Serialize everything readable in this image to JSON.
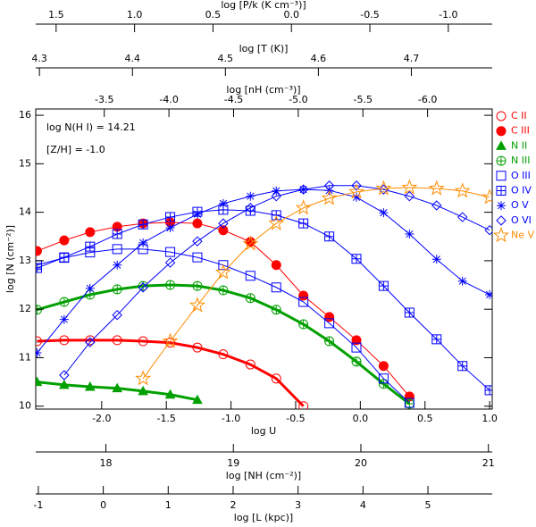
{
  "chart_data": {
    "type": "line",
    "xlabel": "log U",
    "ylabel": "log [N (cm⁻²)]",
    "xlim": [
      -2.51,
      1.02
    ],
    "ylim": [
      9.94,
      16.13
    ],
    "xticks": [
      {
        "value": -2.0,
        "label": "-2.0"
      },
      {
        "value": -1.5,
        "label": "-1.5"
      },
      {
        "value": -1.0,
        "label": "-1.0"
      },
      {
        "value": -0.5,
        "label": "-0.5"
      },
      {
        "value": 0.0,
        "label": "0.0"
      },
      {
        "value": 0.5,
        "label": "0.5"
      },
      {
        "value": 1.0,
        "label": "1.0"
      }
    ],
    "yticks": [
      10,
      11,
      12,
      13,
      14,
      15,
      16
    ],
    "annotations": [
      "log N(H I) = 14.21",
      "[Z/H] = -1.0"
    ],
    "x": [
      -2.5,
      -2.29,
      -2.09,
      -1.88,
      -1.68,
      -1.47,
      -1.26,
      -1.06,
      -0.85,
      -0.65,
      -0.44,
      -0.24,
      -0.03,
      0.18,
      0.38,
      0.59,
      0.79,
      1.0
    ],
    "series": [
      {
        "name": "C II",
        "color": "#ff0000",
        "marker": "circle-open",
        "linewidth": 3,
        "values": [
          11.34,
          11.36,
          11.36,
          11.36,
          11.34,
          11.31,
          11.21,
          11.07,
          10.86,
          10.57,
          10.0,
          null,
          null,
          null,
          null,
          null,
          null,
          null
        ]
      },
      {
        "name": "C III",
        "color": "#ff0000",
        "marker": "circle-filled",
        "linewidth": 1,
        "values": [
          13.2,
          13.42,
          13.59,
          13.7,
          13.77,
          13.79,
          13.77,
          13.63,
          13.39,
          12.91,
          12.28,
          11.84,
          11.36,
          10.83,
          10.2,
          null,
          null,
          null
        ]
      },
      {
        "name": "N II",
        "color": "#00a000",
        "marker": "triangle-filled",
        "linewidth": 3,
        "values": [
          10.5,
          10.44,
          10.4,
          10.37,
          10.31,
          10.24,
          10.13,
          null,
          null,
          null,
          null,
          null,
          null,
          null,
          null,
          null,
          null,
          null
        ]
      },
      {
        "name": "N III",
        "color": "#00a000",
        "marker": "circle-plus",
        "linewidth": 3,
        "values": [
          11.99,
          12.15,
          12.3,
          12.41,
          12.48,
          12.5,
          12.48,
          12.39,
          12.23,
          11.99,
          11.69,
          11.34,
          10.92,
          10.46,
          10.05,
          null,
          null,
          null
        ]
      },
      {
        "name": "O III",
        "color": "#0000ff",
        "marker": "square-open",
        "linewidth": 1,
        "values": [
          12.91,
          13.06,
          13.17,
          13.24,
          13.24,
          13.18,
          13.07,
          12.91,
          12.69,
          12.45,
          12.15,
          11.71,
          11.21,
          10.57,
          10.07,
          null,
          null,
          null
        ]
      },
      {
        "name": "O IV",
        "color": "#0000ff",
        "marker": "square-plus",
        "linewidth": 1,
        "values": [
          12.85,
          13.07,
          13.29,
          13.55,
          13.75,
          13.9,
          14.01,
          14.05,
          14.03,
          13.94,
          13.77,
          13.5,
          13.04,
          12.48,
          11.93,
          11.38,
          10.83,
          10.33
        ]
      },
      {
        "name": "O V",
        "color": "#0000ff",
        "marker": "asterisk",
        "linewidth": 1,
        "values": [
          11.1,
          11.79,
          12.43,
          12.91,
          13.37,
          13.68,
          13.96,
          14.18,
          14.33,
          14.44,
          14.47,
          14.45,
          14.31,
          13.99,
          13.55,
          13.03,
          12.58,
          12.3
        ]
      },
      {
        "name": "O VI",
        "color": "#0000ff",
        "marker": "diamond-open",
        "linewidth": 1,
        "values": [
          null,
          10.64,
          11.32,
          11.88,
          12.45,
          12.96,
          13.4,
          13.77,
          14.09,
          14.33,
          14.47,
          14.55,
          14.55,
          14.47,
          14.33,
          14.14,
          13.9,
          13.63
        ]
      },
      {
        "name": "Ne V",
        "color": "#ff8c00",
        "marker": "star-open",
        "linewidth": 1,
        "values": [
          null,
          null,
          null,
          null,
          10.57,
          11.34,
          12.08,
          12.76,
          13.35,
          13.77,
          14.09,
          14.29,
          14.42,
          14.49,
          14.51,
          14.49,
          14.44,
          14.31
        ]
      }
    ],
    "secondary_x_axes": [
      {
        "side": "top",
        "label": "log [P/k (K cm⁻³)]",
        "xlim": [
          1.63,
          -1.28
        ],
        "xticks": [
          {
            "value": 1.5,
            "label": "1.5"
          },
          {
            "value": 1.0,
            "label": "1.0"
          },
          0.5,
          {
            "value": 0.0,
            "label": "0.0"
          },
          -0.5,
          {
            "value": -1.0,
            "label": "-1.0"
          }
        ]
      },
      {
        "side": "top",
        "label": "log [T (K)]",
        "xlim": [
          4.296,
          4.787
        ],
        "xticks": [
          4.3,
          4.4,
          4.5,
          4.6,
          4.7
        ]
      },
      {
        "side": "top",
        "label": "log [nH (cm⁻³)]",
        "xlim": [
          -2.97,
          -6.5
        ],
        "xticks": [
          -3.5,
          {
            "value": -4.0,
            "label": "-4.0"
          },
          -4.5,
          {
            "value": -5.0,
            "label": "-5.0"
          },
          -5.5,
          {
            "value": -6.0,
            "label": "-6.0"
          }
        ]
      },
      {
        "side": "bottom",
        "label": "log [NH (cm⁻²)]",
        "xlim": [
          17.45,
          21.03
        ],
        "xticks": [
          18,
          19,
          20,
          21
        ]
      },
      {
        "side": "bottom",
        "label": "log [L (kpc)]",
        "xlim": [
          -1.04,
          5.99
        ],
        "xticks": [
          -1,
          0,
          1,
          2,
          3,
          4,
          5
        ]
      }
    ]
  }
}
